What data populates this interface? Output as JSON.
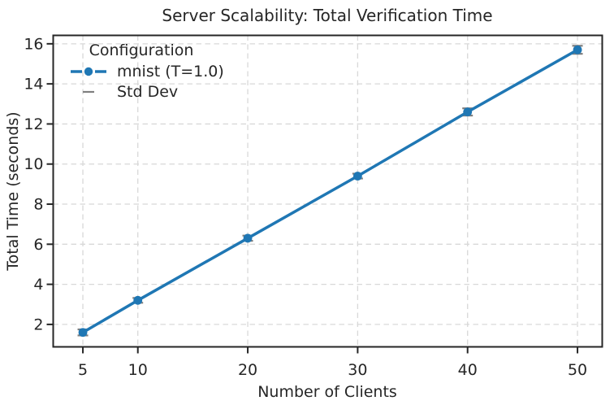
{
  "chart_data": {
    "type": "line",
    "title": "Server Scalability: Total Verification Time",
    "xlabel": "Number of Clients",
    "ylabel": "Total Time (seconds)",
    "legend": {
      "title": "Configuration",
      "entries": [
        {
          "label": "mnist (T=1.0)",
          "style": "line-marker",
          "color": "#1f77b4"
        },
        {
          "label": "Std Dev",
          "style": "errorbar",
          "color": "#7f7f7f"
        }
      ],
      "position": "upper-left"
    },
    "series": [
      {
        "name": "mnist (T=1.0)",
        "x": [
          5,
          10,
          20,
          30,
          40,
          50
        ],
        "y": [
          1.6,
          3.2,
          6.3,
          9.4,
          12.6,
          15.7
        ],
        "std": [
          0.15,
          0.12,
          0.13,
          0.12,
          0.18,
          0.2
        ],
        "color": "#1f77b4"
      }
    ],
    "x_ticks": [
      5,
      10,
      20,
      30,
      40,
      50
    ],
    "y_ticks": [
      2,
      4,
      6,
      8,
      10,
      12,
      14,
      16
    ],
    "xlim": [
      2.3,
      52.25
    ],
    "ylim": [
      0.88,
      16.42
    ],
    "grid": true,
    "grid_style": "dashed",
    "colors": {
      "line": "#1f77b4",
      "error": "#7f7f7f",
      "grid": "#d8d8d8",
      "spine": "#262626",
      "text": "#262626"
    }
  }
}
